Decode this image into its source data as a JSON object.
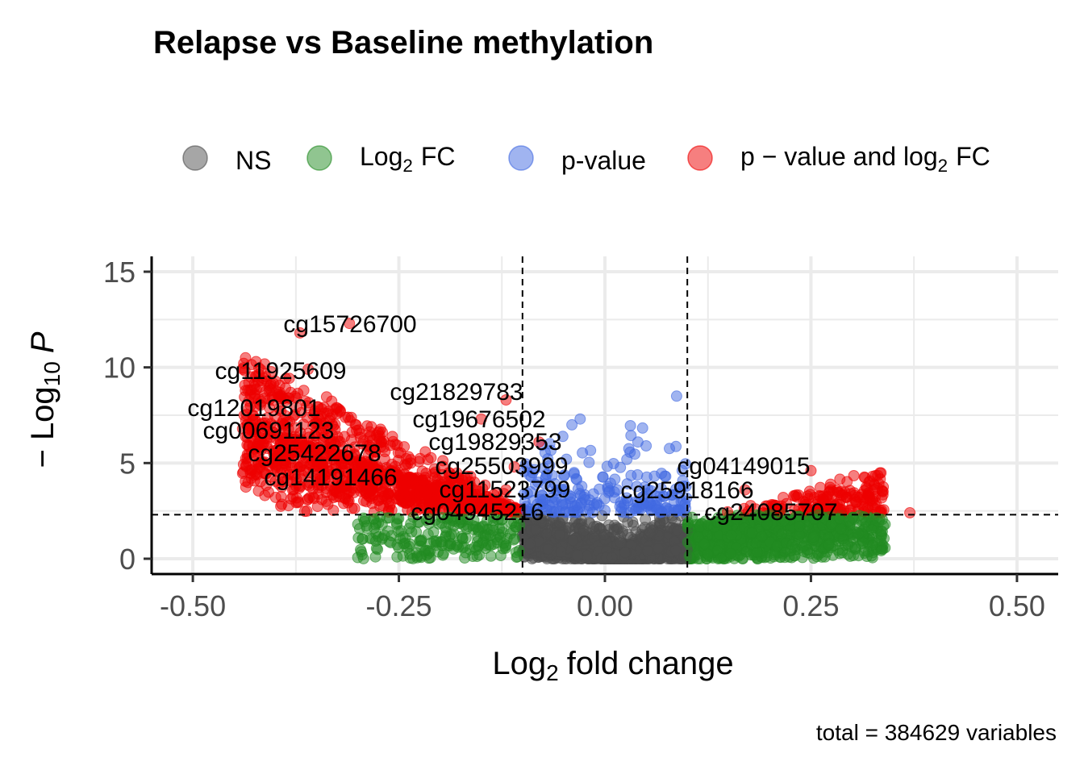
{
  "chart_data": {
    "type": "scatter",
    "title": "Relapse vs Baseline methylation",
    "xlabel": {
      "prefix": "Log",
      "sub": "2",
      "suffix": "fold change"
    },
    "ylabel": {
      "prefix": "− Log",
      "sub": "10",
      "suffix": "P"
    },
    "caption": "total = 384629 variables",
    "xlim": [
      -0.55,
      0.55
    ],
    "ylim": [
      -0.8,
      15.8
    ],
    "x_ticks": [
      {
        "value": -0.5,
        "label": "-0.50"
      },
      {
        "value": -0.25,
        "label": "-0.25"
      },
      {
        "value": 0.0,
        "label": "0.00"
      },
      {
        "value": 0.25,
        "label": "0.25"
      },
      {
        "value": 0.5,
        "label": "0.50"
      }
    ],
    "y_ticks": [
      {
        "value": 0,
        "label": "0"
      },
      {
        "value": 5,
        "label": "5"
      },
      {
        "value": 10,
        "label": "10"
      },
      {
        "value": 15,
        "label": "15"
      }
    ],
    "grid": true,
    "fc_cutoff": 0.1,
    "p_cutoff_log10": 2.3,
    "legend": {
      "position": "top",
      "items": [
        {
          "key": "NS",
          "color": "#4d4d4d",
          "text": "NS"
        },
        {
          "key": "log2fc",
          "color": "#228b22",
          "prefix": "Log",
          "sub": "2",
          "suffix": "FC"
        },
        {
          "key": "pvalue",
          "color": "#4169e1",
          "text": "p-value"
        },
        {
          "key": "both",
          "color": "#ee0000",
          "prefix": "p − value  and  log",
          "sub": "2",
          "suffix": "FC"
        }
      ]
    },
    "labeled_points": [
      {
        "name": "cg15726700",
        "x": -0.31,
        "y": 12.3
      },
      {
        "name": "cg11925609",
        "x": -0.36,
        "y": 9.9
      },
      {
        "name": "cg21829783",
        "x": -0.12,
        "y": 8.3
      },
      {
        "name": "cg12019801",
        "x": -0.43,
        "y": 8.0
      },
      {
        "name": "cg19676502",
        "x": -0.15,
        "y": 7.3
      },
      {
        "name": "cg00691123",
        "x": -0.42,
        "y": 6.8
      },
      {
        "name": "cg19829353",
        "x": -0.08,
        "y": 6.1
      },
      {
        "name": "cg25422678",
        "x": -0.39,
        "y": 5.9
      },
      {
        "name": "cg04149015",
        "x": 0.25,
        "y": 4.6
      },
      {
        "name": "cg25503999",
        "x": -0.11,
        "y": 4.8
      },
      {
        "name": "cg14191466",
        "x": -0.37,
        "y": 4.8
      },
      {
        "name": "cg25918166",
        "x": 0.17,
        "y": 3.6
      },
      {
        "name": "cg11523799",
        "x": -0.12,
        "y": 3.6
      },
      {
        "name": "cg04945216",
        "x": -0.13,
        "y": 2.6
      },
      {
        "name": "cg24085707",
        "x": 0.3,
        "y": 2.9
      }
    ],
    "highlight_points": [
      {
        "group": "pvalue",
        "x": 0.087,
        "y": 8.5
      },
      {
        "group": "pvalue",
        "x": -0.03,
        "y": 7.3
      },
      {
        "group": "pvalue",
        "x": -0.04,
        "y": 7.0
      },
      {
        "group": "pvalue",
        "x": 0.04,
        "y": 6.1
      },
      {
        "group": "pvalue",
        "x": 0.05,
        "y": 5.9
      },
      {
        "group": "both",
        "x": 0.37,
        "y": 2.4
      },
      {
        "group": "both",
        "x": -0.37,
        "y": 11.8
      },
      {
        "group": "log2fc",
        "x": -0.28,
        "y": 1.6
      },
      {
        "group": "log2fc",
        "x": 0.34,
        "y": 1.8
      }
    ]
  }
}
